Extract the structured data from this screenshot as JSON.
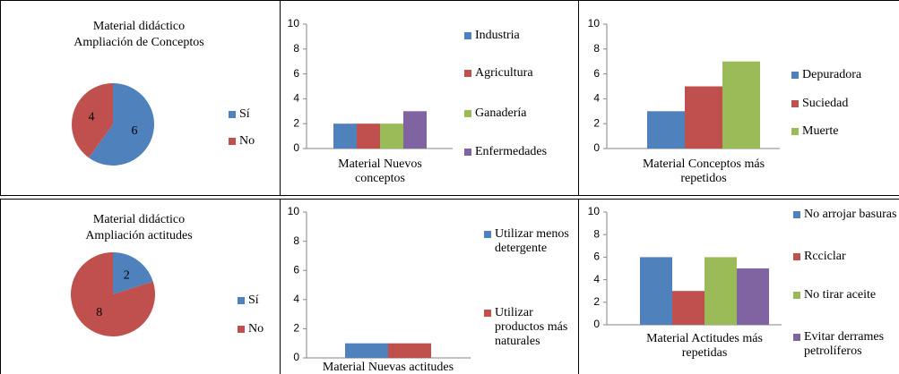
{
  "chart_data": [
    {
      "type": "pie",
      "title": [
        "Material didáctico",
        "Ampliación  de Conceptos"
      ],
      "categories": [
        "Sí",
        "No"
      ],
      "values": [
        6,
        4
      ],
      "colors": [
        "#4f81bd",
        "#c0504d"
      ]
    },
    {
      "type": "bar",
      "categories": [
        "Material Nuevos conceptos"
      ],
      "ylim": [
        0,
        10
      ],
      "yticks": [
        0,
        2,
        4,
        6,
        8,
        10
      ],
      "series": [
        {
          "name": "Industria",
          "color": "#4f81bd",
          "values": [
            2
          ]
        },
        {
          "name": "Agricultura",
          "color": "#c0504d",
          "values": [
            2
          ]
        },
        {
          "name": "Ganadería",
          "color": "#9bbb59",
          "values": [
            2
          ]
        },
        {
          "name": "Enfermedades",
          "color": "#8064a2",
          "values": [
            3
          ]
        }
      ]
    },
    {
      "type": "bar",
      "categories": [
        "Material Conceptos más repetidos"
      ],
      "ylim": [
        0,
        10
      ],
      "yticks": [
        0,
        2,
        4,
        6,
        8,
        10
      ],
      "series": [
        {
          "name": "Depuradora",
          "color": "#4f81bd",
          "values": [
            3
          ]
        },
        {
          "name": "Suciedad",
          "color": "#c0504d",
          "values": [
            5
          ]
        },
        {
          "name": "Muerte",
          "color": "#9bbb59",
          "values": [
            7
          ]
        }
      ]
    },
    {
      "type": "pie",
      "title": [
        "Material didáctico",
        "Ampliación  actitudes"
      ],
      "categories": [
        "Sí",
        "No"
      ],
      "values": [
        2,
        8
      ],
      "colors": [
        "#4f81bd",
        "#c0504d"
      ]
    },
    {
      "type": "bar",
      "categories": [
        "Material Nuevas actitudes"
      ],
      "ylim": [
        0,
        10
      ],
      "yticks": [
        0,
        2,
        4,
        6,
        8,
        10
      ],
      "series": [
        {
          "name": "Utilizar menos detergente",
          "color": "#4f81bd",
          "values": [
            1
          ]
        },
        {
          "name": "Utilizar productos más naturales",
          "color": "#c0504d",
          "values": [
            1
          ]
        }
      ]
    },
    {
      "type": "bar",
      "categories": [
        "Material Actitudes más repetidas"
      ],
      "ylim": [
        0,
        10
      ],
      "yticks": [
        0,
        2,
        4,
        6,
        8,
        10
      ],
      "series": [
        {
          "name": "No arrojar basuras",
          "color": "#4f81bd",
          "values": [
            6
          ]
        },
        {
          "name": "Rcciclar",
          "color": "#c0504d",
          "values": [
            3
          ]
        },
        {
          "name": "No tirar aceite",
          "color": "#9bbb59",
          "values": [
            6
          ]
        },
        {
          "name": "Evitar derrames petrolíferos",
          "color": "#8064a2",
          "values": [
            5
          ]
        }
      ]
    }
  ]
}
